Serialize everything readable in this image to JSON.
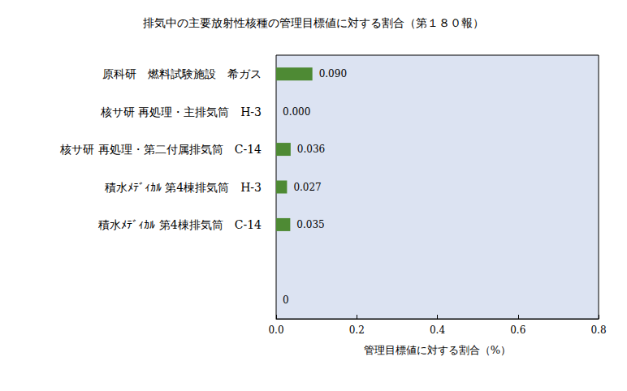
{
  "chart_data": {
    "type": "bar",
    "orientation": "horizontal",
    "title": "排気中の主要放射性核種の管理目標値に対する割合（第１８０報）",
    "x_label": "管理目標値に対する割合（%）",
    "categories": [
      "原科研　燃料試験施設　希ガス",
      "核サ研 再処理・主排気筒　H-3",
      "核サ研 再処理・第二付属排気筒　C-14",
      "積水ﾒﾃﾞｨｶﾙ 第4棟排気筒　H-3",
      "積水ﾒﾃﾞｨｶﾙ 第4棟排気筒　C-14",
      null,
      null
    ],
    "values": [
      0.09,
      0.0,
      0.036,
      0.027,
      0.035,
      null,
      0
    ],
    "value_labels": [
      "0.090",
      "0.000",
      "0.036",
      "0.027",
      "0.035",
      null,
      "0"
    ],
    "color": "#4e8a34",
    "xlim": [
      0,
      0.8
    ],
    "xticks": [
      {
        "value": 0,
        "label": "0.0"
      },
      0.2,
      0.4,
      0.6,
      0.8
    ],
    "grid": false,
    "data_labels": true
  }
}
